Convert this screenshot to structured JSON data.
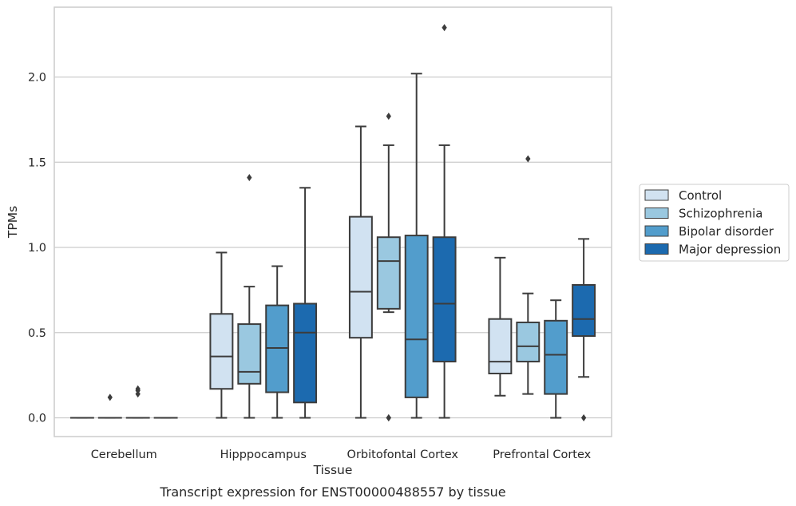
{
  "caption": "Transcript expression for ENST00000488557 by tissue",
  "chart_data": {
    "type": "boxplot",
    "xlabel": "Tissue",
    "ylabel": "TPMs",
    "ylim": [
      -0.11,
      2.41
    ],
    "yticks": [
      "0.0",
      "0.5",
      "1.0",
      "1.5",
      "2.0"
    ],
    "ytick_values": [
      0.0,
      0.5,
      1.0,
      1.5,
      2.0
    ],
    "grid": "horizontal",
    "legend_position": "right",
    "categories": [
      "Cerebellum",
      "Hipppocampus",
      "Orbitofontal Cortex",
      "Prefrontal Cortex"
    ],
    "series": [
      {
        "name": "Control",
        "color": "#d1e2f1",
        "boxes": [
          {
            "whislo": 0.0,
            "q1": 0.0,
            "med": 0.0,
            "q3": 0.0,
            "whishi": 0.0,
            "fliers": []
          },
          {
            "whislo": 0.0,
            "q1": 0.17,
            "med": 0.36,
            "q3": 0.61,
            "whishi": 0.97,
            "fliers": []
          },
          {
            "whislo": 0.0,
            "q1": 0.47,
            "med": 0.74,
            "q3": 1.18,
            "whishi": 1.71,
            "fliers": []
          },
          {
            "whislo": 0.13,
            "q1": 0.26,
            "med": 0.33,
            "q3": 0.58,
            "whishi": 0.94,
            "fliers": []
          }
        ]
      },
      {
        "name": "Schizophrenia",
        "color": "#9ac8e0",
        "boxes": [
          {
            "whislo": 0.0,
            "q1": 0.0,
            "med": 0.0,
            "q3": 0.0,
            "whishi": 0.0,
            "fliers": [
              0.12
            ]
          },
          {
            "whislo": 0.0,
            "q1": 0.2,
            "med": 0.27,
            "q3": 0.55,
            "whishi": 0.77,
            "fliers": [
              1.41
            ]
          },
          {
            "whislo": 0.62,
            "q1": 0.64,
            "med": 0.92,
            "q3": 1.06,
            "whishi": 1.6,
            "fliers": [
              1.77,
              0.0,
              0.0
            ]
          },
          {
            "whislo": 0.14,
            "q1": 0.33,
            "med": 0.42,
            "q3": 0.56,
            "whishi": 0.73,
            "fliers": [
              1.52
            ]
          }
        ]
      },
      {
        "name": "Bipolar disorder",
        "color": "#529dcc",
        "boxes": [
          {
            "whislo": 0.0,
            "q1": 0.0,
            "med": 0.0,
            "q3": 0.0,
            "whishi": 0.0,
            "fliers": [
              0.14,
              0.17,
              0.16
            ]
          },
          {
            "whislo": 0.0,
            "q1": 0.15,
            "med": 0.41,
            "q3": 0.66,
            "whishi": 0.89,
            "fliers": []
          },
          {
            "whislo": 0.0,
            "q1": 0.12,
            "med": 0.46,
            "q3": 1.07,
            "whishi": 2.02,
            "fliers": []
          },
          {
            "whislo": 0.0,
            "q1": 0.14,
            "med": 0.37,
            "q3": 0.57,
            "whishi": 0.69,
            "fliers": []
          }
        ]
      },
      {
        "name": "Major depression",
        "color": "#1c6aaf",
        "boxes": [
          {
            "whislo": 0.0,
            "q1": 0.0,
            "med": 0.0,
            "q3": 0.0,
            "whishi": 0.0,
            "fliers": []
          },
          {
            "whislo": 0.0,
            "q1": 0.09,
            "med": 0.5,
            "q3": 0.67,
            "whishi": 1.35,
            "fliers": []
          },
          {
            "whislo": 0.0,
            "q1": 0.33,
            "med": 0.67,
            "q3": 1.06,
            "whishi": 1.6,
            "fliers": [
              2.29
            ]
          },
          {
            "whislo": 0.24,
            "q1": 0.48,
            "med": 0.58,
            "q3": 0.78,
            "whishi": 1.05,
            "fliers": [
              0.0
            ]
          }
        ]
      }
    ]
  }
}
